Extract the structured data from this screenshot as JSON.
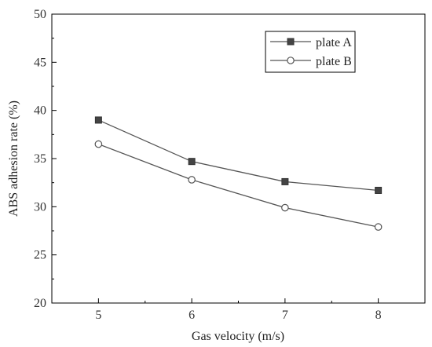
{
  "chart_data": {
    "type": "line",
    "title": "",
    "xlabel": "Gas velocity (m/s)",
    "ylabel": "ABS adhesion rate (%)",
    "x": [
      5,
      6,
      7,
      8
    ],
    "x_ticks": [
      "5",
      "6",
      "7",
      "8"
    ],
    "xlim": [
      4.5,
      8.5
    ],
    "ylim": [
      20,
      50
    ],
    "y_ticks": [
      "20",
      "25",
      "30",
      "35",
      "40",
      "45",
      "50"
    ],
    "grid": false,
    "legend_position": "top-right",
    "series": [
      {
        "name": "plate A",
        "marker": "filled-square",
        "color": "#555555",
        "values": [
          39.0,
          34.7,
          32.6,
          31.7
        ]
      },
      {
        "name": "plate B",
        "marker": "open-circle",
        "color": "#555555",
        "values": [
          36.5,
          32.8,
          29.9,
          27.9
        ]
      }
    ]
  }
}
